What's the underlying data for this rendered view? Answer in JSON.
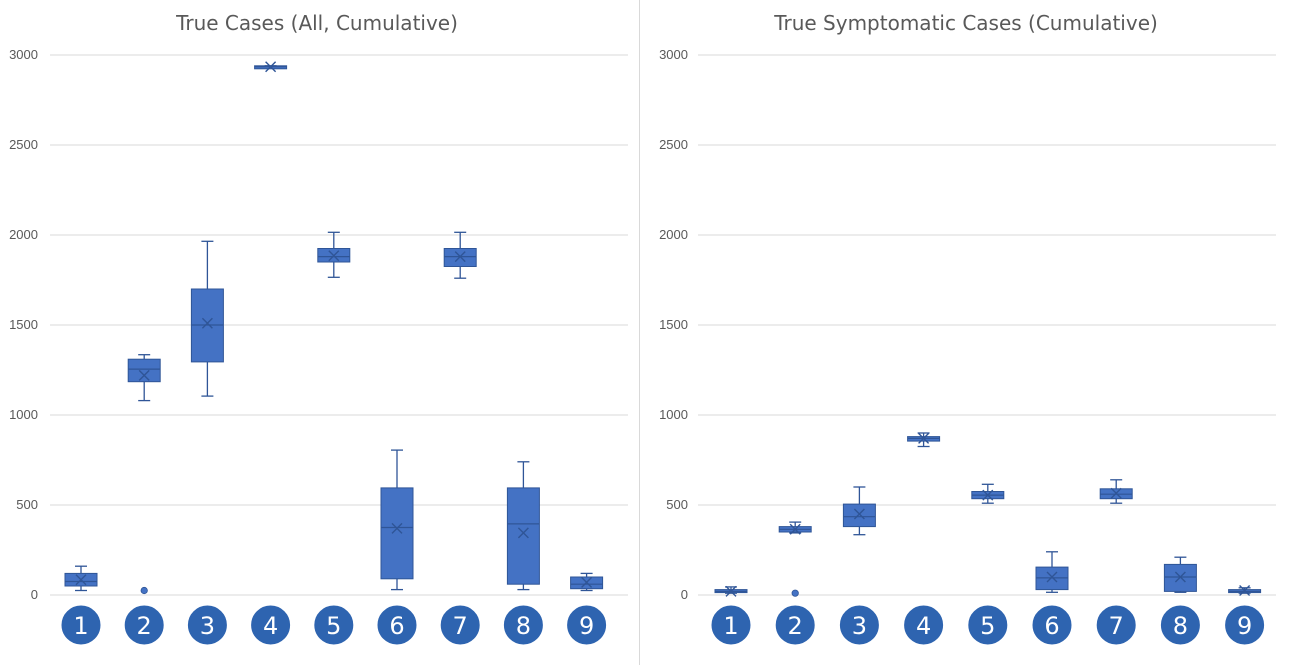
{
  "colors": {
    "box_fill": "#4472c4",
    "box_stroke": "#2f5597",
    "badge_fill": "#2e64b0",
    "grid": "#d9d9d9",
    "text": "#595959"
  },
  "chart_data": [
    {
      "type": "box",
      "title": "True Cases (All, Cumulative)",
      "ylim": [
        0,
        3000
      ],
      "yticks": [
        "0",
        "500",
        "1000",
        "1500",
        "2000",
        "2500",
        "3000"
      ],
      "categories": [
        "1",
        "2",
        "3",
        "4",
        "5",
        "6",
        "7",
        "8",
        "9"
      ],
      "grid": true,
      "boxes": [
        {
          "min": 25,
          "q1": 50,
          "median": 75,
          "q3": 120,
          "max": 160,
          "mean": 85,
          "outliers": []
        },
        {
          "min": 1080,
          "q1": 1185,
          "median": 1255,
          "q3": 1310,
          "max": 1335,
          "mean": 1220,
          "outliers": [
            25
          ]
        },
        {
          "min": 1105,
          "q1": 1295,
          "median": 1500,
          "q3": 1700,
          "max": 1965,
          "mean": 1510,
          "outliers": []
        },
        {
          "min": 2928,
          "q1": 2928,
          "median": 2935,
          "q3": 2940,
          "max": 2940,
          "mean": 2935,
          "outliers": []
        },
        {
          "min": 1765,
          "q1": 1850,
          "median": 1880,
          "q3": 1925,
          "max": 2015,
          "mean": 1885,
          "outliers": []
        },
        {
          "min": 30,
          "q1": 90,
          "median": 375,
          "q3": 595,
          "max": 805,
          "mean": 370,
          "outliers": []
        },
        {
          "min": 1760,
          "q1": 1825,
          "median": 1880,
          "q3": 1925,
          "max": 2015,
          "mean": 1880,
          "outliers": []
        },
        {
          "min": 30,
          "q1": 60,
          "median": 395,
          "q3": 595,
          "max": 740,
          "mean": 345,
          "outliers": []
        },
        {
          "min": 25,
          "q1": 35,
          "median": 60,
          "q3": 100,
          "max": 120,
          "mean": 70,
          "outliers": []
        }
      ]
    },
    {
      "type": "box",
      "title": "True Symptomatic Cases (Cumulative)",
      "ylim": [
        0,
        3000
      ],
      "yticks": [
        "0",
        "500",
        "1000",
        "1500",
        "2000",
        "2500",
        "3000"
      ],
      "categories": [
        "1",
        "2",
        "3",
        "4",
        "5",
        "6",
        "7",
        "8",
        "9"
      ],
      "grid": true,
      "boxes": [
        {
          "min": 10,
          "q1": 15,
          "median": 20,
          "q3": 30,
          "max": 45,
          "mean": 20,
          "outliers": []
        },
        {
          "min": 345,
          "q1": 350,
          "median": 365,
          "q3": 380,
          "max": 405,
          "mean": 365,
          "outliers": [
            10
          ]
        },
        {
          "min": 335,
          "q1": 380,
          "median": 435,
          "q3": 505,
          "max": 600,
          "mean": 450,
          "outliers": []
        },
        {
          "min": 825,
          "q1": 855,
          "median": 870,
          "q3": 880,
          "max": 900,
          "mean": 870,
          "outliers": []
        },
        {
          "min": 510,
          "q1": 535,
          "median": 555,
          "q3": 575,
          "max": 615,
          "mean": 555,
          "outliers": []
        },
        {
          "min": 15,
          "q1": 30,
          "median": 95,
          "q3": 155,
          "max": 240,
          "mean": 100,
          "outliers": []
        },
        {
          "min": 510,
          "q1": 535,
          "median": 560,
          "q3": 590,
          "max": 640,
          "mean": 565,
          "outliers": []
        },
        {
          "min": 15,
          "q1": 20,
          "median": 100,
          "q3": 170,
          "max": 210,
          "mean": 100,
          "outliers": []
        },
        {
          "min": 10,
          "q1": 15,
          "median": 20,
          "q3": 30,
          "max": 40,
          "mean": 25,
          "outliers": []
        }
      ]
    }
  ]
}
